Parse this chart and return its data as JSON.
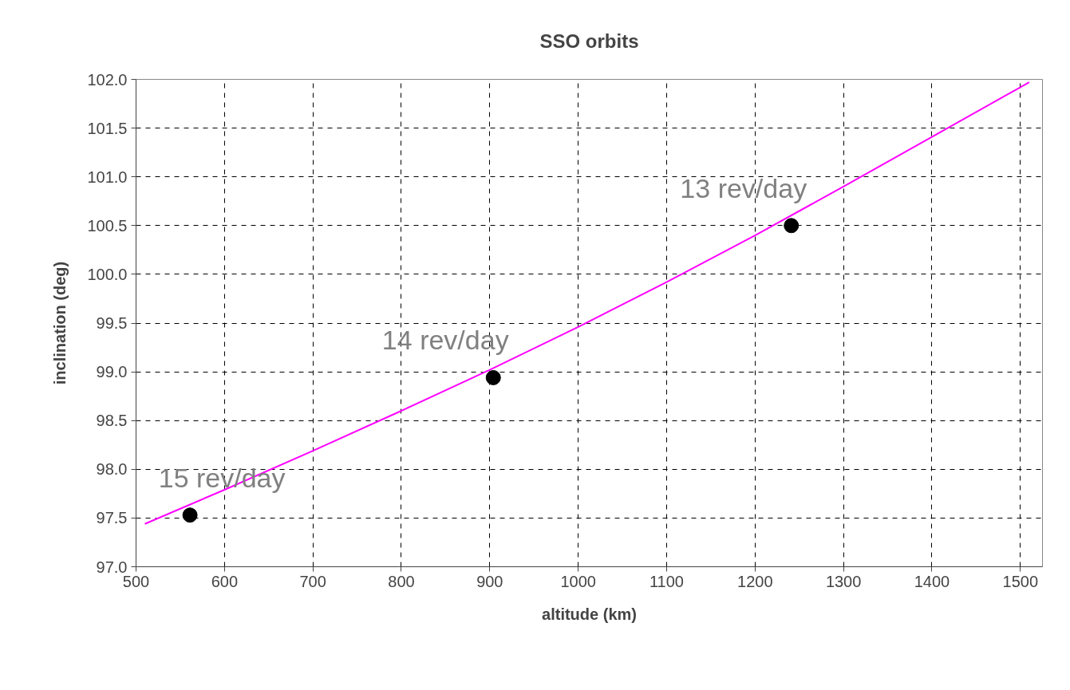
{
  "chart_data": {
    "type": "line",
    "title": "SSO orbits",
    "xlabel": "altitude (km)",
    "ylabel": "inclination (deg)",
    "xlim": [
      500,
      1525
    ],
    "xticks": [
      500,
      600,
      700,
      800,
      900,
      1000,
      1100,
      1200,
      1300,
      1400,
      1500
    ],
    "ylim": [
      97.0,
      102.0
    ],
    "yticks": [
      {
        "value": 97.0,
        "label": "97.0"
      },
      {
        "value": 97.5,
        "label": "97.5"
      },
      {
        "value": 98.0,
        "label": "98.0"
      },
      {
        "value": 98.5,
        "label": "98.5"
      },
      {
        "value": 99.0,
        "label": "99.0"
      },
      {
        "value": 99.5,
        "label": "99.5"
      },
      {
        "value": 100.0,
        "label": "100.0"
      },
      {
        "value": 100.5,
        "label": "100.5"
      },
      {
        "value": 101.0,
        "label": "101.0"
      },
      {
        "value": 101.5,
        "label": "101.5"
      },
      {
        "value": 102.0,
        "label": "102.0"
      }
    ],
    "grid": true,
    "series": [
      {
        "color": "#ff00ff",
        "marker": "none",
        "line_style": "solid",
        "x": [
          510,
          600,
          700,
          800,
          900,
          1000,
          1100,
          1200,
          1300,
          1400,
          1510
        ],
        "values": [
          97.44,
          97.79,
          98.19,
          98.6,
          99.02,
          99.46,
          99.92,
          100.4,
          100.9,
          101.41,
          101.97
        ]
      },
      {
        "type": "scatter",
        "color": "#000000",
        "marker": "circle",
        "x": [
          561,
          904,
          1241
        ],
        "values": [
          97.53,
          98.94,
          100.5
        ]
      }
    ],
    "annotations": [
      {
        "text": "15 rev/day",
        "x": 561,
        "y": 97.53
      },
      {
        "text": "14 rev/day",
        "x": 904,
        "y": 98.94
      },
      {
        "text": "13 rev/day",
        "x": 1241,
        "y": 100.5
      }
    ]
  }
}
